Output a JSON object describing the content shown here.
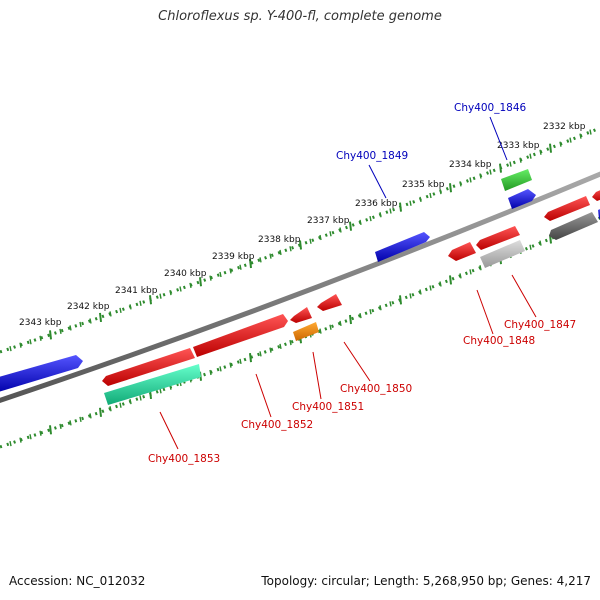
{
  "title": "Chloroflexus sp. Y-400-fl, complete genome",
  "footer": {
    "accession": "Accession: NC_012032",
    "summary": "Topology: circular; Length: 5,268,950 bp; Genes: 4,217"
  },
  "scale_labels": [
    "2332 kbp",
    "2333 kbp",
    "2334 kbp",
    "2335 kbp",
    "2336 kbp",
    "2337 kbp",
    "2338 kbp",
    "2339 kbp",
    "2340 kbp",
    "2341 kbp",
    "2342 kbp",
    "2343 kbp"
  ],
  "gene_labels": {
    "forward": [
      "Chy400_1846",
      "Chy400_1849"
    ],
    "reverse": [
      "Chy400_1847",
      "Chy400_1848",
      "Chy400_1850",
      "Chy400_1851",
      "Chy400_1852",
      "Chy400_1853"
    ]
  },
  "colors": {
    "backbone": "#7a7a7a",
    "tick": "#2e8b2e",
    "forward_label": "#0000bb",
    "reverse_label": "#cc0000",
    "blue_gene": "#1515e6",
    "red_gene": "#ee1111",
    "green_gene": "#33cc33",
    "teal_gene": "#22dd99",
    "orange_gene": "#ee8800",
    "gray_gene": "#777777",
    "silver_gene": "#bbbbbb"
  }
}
